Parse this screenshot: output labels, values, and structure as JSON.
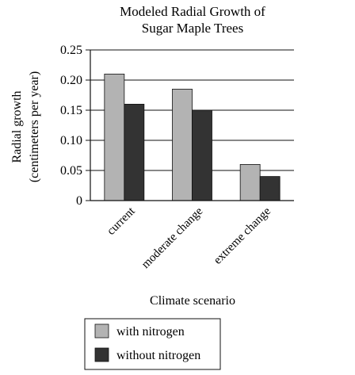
{
  "chart_data": {
    "type": "bar",
    "title_lines": [
      "Modeled Radial Growth of",
      "Sugar Maple Trees"
    ],
    "ylabel_lines": [
      "Radial growth",
      "(centimeters per year)"
    ],
    "xlabel": "Climate scenario",
    "categories": [
      "current",
      "moderate change",
      "extreme change"
    ],
    "series": [
      {
        "name": "with nitrogen",
        "color": "#b3b3b3",
        "values": [
          0.21,
          0.185,
          0.06
        ]
      },
      {
        "name": "without nitrogen",
        "color": "#333333",
        "values": [
          0.16,
          0.15,
          0.04
        ]
      }
    ],
    "yticks": [
      "0.25",
      "0.20",
      "0.15",
      "0.10",
      "0.05",
      "0"
    ],
    "ylim": [
      0,
      0.25
    ],
    "grid": true,
    "legend_position": "bottom"
  }
}
